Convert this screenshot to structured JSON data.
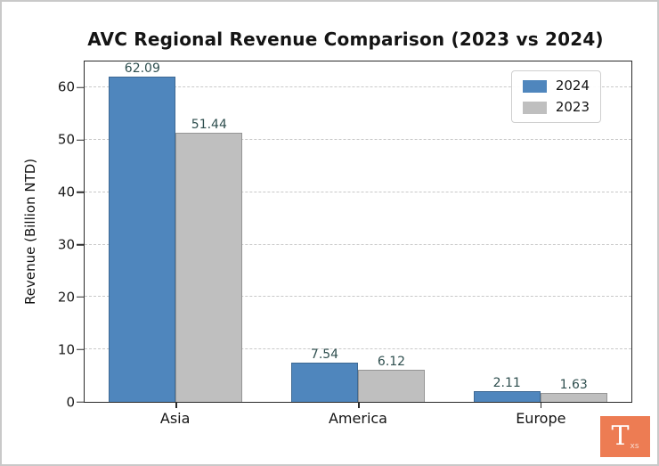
{
  "title": "AVC Regional Revenue Comparison (2023 vs 2024)",
  "chart_data": {
    "type": "bar",
    "title": "AVC Regional Revenue Comparison (2023 vs 2024)",
    "xlabel": "",
    "ylabel": "Revenue (Billion NTD)",
    "categories": [
      "Asia",
      "America",
      "Europe"
    ],
    "series": [
      {
        "name": "2024",
        "color": "#4f86bd",
        "values": [
          62.09,
          7.54,
          2.11
        ]
      },
      {
        "name": "2023",
        "color": "#bfbfbf",
        "values": [
          51.44,
          6.12,
          1.63
        ]
      }
    ],
    "value_label_decimals": 2,
    "value_label_color": "#2f4f4f",
    "yticks": [
      0,
      10,
      20,
      30,
      40,
      50,
      60
    ],
    "ylim": [
      0,
      65
    ],
    "grid": "horizontal-dashed",
    "legend_position": "upper-right"
  },
  "legend": {
    "items": [
      {
        "label": "2024",
        "color": "#4f86bd"
      },
      {
        "label": "2023",
        "color": "#bfbfbf"
      }
    ]
  },
  "logo": {
    "letter": "T",
    "sub": "xs"
  }
}
